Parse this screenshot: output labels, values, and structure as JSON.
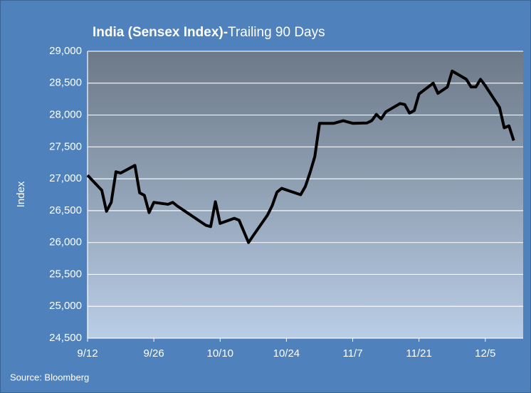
{
  "chart_data": {
    "type": "line",
    "title": [
      "India (Sensex Index)-",
      "Trailing 90 Days"
    ],
    "ylabel": "Index",
    "source": "Source: Bloomberg",
    "series": [
      {
        "name": "Sensex",
        "color": "#000000",
        "x": [
          "9/12",
          "9/15",
          "9/16",
          "9/17",
          "9/18",
          "9/19",
          "9/22",
          "9/23",
          "9/24",
          "9/25",
          "9/26",
          "9/29",
          "9/30",
          "10/1",
          "10/7",
          "10/8",
          "10/9",
          "10/10",
          "10/13",
          "10/14",
          "10/16",
          "10/17",
          "10/20",
          "10/21",
          "10/22",
          "10/23",
          "10/27",
          "10/28",
          "10/29",
          "10/30",
          "10/31",
          "11/3",
          "11/5",
          "11/7",
          "11/10",
          "11/11",
          "11/12",
          "11/13",
          "11/14",
          "11/17",
          "11/18",
          "11/19",
          "11/20",
          "11/21",
          "11/24",
          "11/25",
          "11/26",
          "11/27",
          "11/28",
          "12/1",
          "12/2",
          "12/3",
          "12/4",
          "12/5",
          "12/8",
          "12/9",
          "12/10",
          "12/11"
        ],
        "values": [
          27055,
          26820,
          26490,
          26630,
          27110,
          27090,
          27210,
          26780,
          26740,
          26470,
          26630,
          26600,
          26630,
          26570,
          26270,
          26250,
          26640,
          26300,
          26380,
          26350,
          26000,
          26110,
          26430,
          26580,
          26790,
          26850,
          26750,
          26880,
          27100,
          27350,
          27870,
          27870,
          27910,
          27870,
          27875,
          27910,
          28010,
          27940,
          28050,
          28180,
          28165,
          28030,
          28070,
          28330,
          28500,
          28340,
          28390,
          28440,
          28690,
          28560,
          28440,
          28440,
          28560,
          28460,
          28120,
          27800,
          27830,
          27600
        ]
      }
    ],
    "xlim": [
      "9/12",
      "12/13"
    ],
    "xticks": [
      "9/12",
      "9/26",
      "10/10",
      "10/24",
      "11/7",
      "11/21",
      "12/5"
    ],
    "ylim": [
      24500,
      29000
    ],
    "yticks": [
      {
        "value": 24500,
        "label": "24,500"
      },
      {
        "value": 25000,
        "label": "25,000"
      },
      {
        "value": 25500,
        "label": "25,500"
      },
      {
        "value": 26000,
        "label": "26,000"
      },
      {
        "value": 26500,
        "label": "26,500"
      },
      {
        "value": 27000,
        "label": "27,000"
      },
      {
        "value": 27500,
        "label": "27,500"
      },
      {
        "value": 28000,
        "label": "28,000"
      },
      {
        "value": 28500,
        "label": "28,500"
      },
      {
        "value": 29000,
        "label": "29,000"
      }
    ],
    "grid": true
  }
}
